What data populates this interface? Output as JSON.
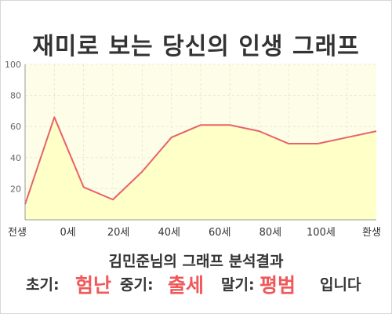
{
  "title": "재미로 보는 당신의 인생 그래프",
  "chart_data": {
    "type": "area",
    "x": [
      0,
      10,
      20,
      30,
      40,
      50,
      60,
      70,
      80,
      90,
      100,
      110,
      120
    ],
    "values": [
      10,
      66,
      21,
      13,
      31,
      53,
      61,
      61,
      57,
      49,
      49,
      53,
      57
    ],
    "ylim": [
      0,
      100
    ],
    "ytick_labels": [
      "20",
      "40",
      "60",
      "80",
      "100"
    ],
    "xtick_labels": [
      "전생",
      "0세",
      "20세",
      "40세",
      "60세",
      "80세",
      "100세",
      "환생"
    ],
    "grid": true,
    "colors": {
      "line": "#e8626a",
      "fill": "#ffffc4",
      "plot_bg": "#fefee8",
      "grid": "#e9e9d0"
    }
  },
  "subtitle": "김민준님의 그래프 분석결과",
  "result": {
    "early_label": "초기:",
    "early_value": "험난",
    "mid_label": "중기:",
    "mid_value": "출세",
    "late_label": "말기:",
    "late_value": "평범",
    "ending": "입니다"
  }
}
